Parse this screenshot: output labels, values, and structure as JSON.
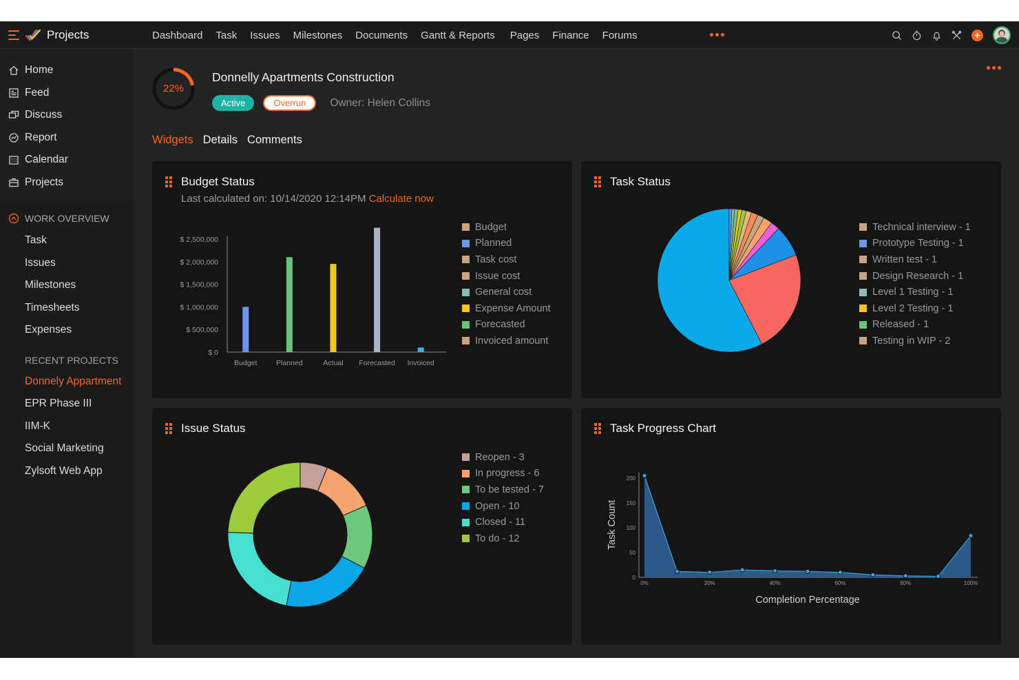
{
  "app": {
    "name": "Projects"
  },
  "topnav": {
    "items": [
      "Dashboard",
      "Task",
      "Issues",
      "Milestones",
      "Documents",
      "Gantt & Reports",
      "Pages",
      "Finance",
      "Forums"
    ]
  },
  "sidebar": {
    "main_items": [
      {
        "label": "Home",
        "icon": "home-icon"
      },
      {
        "label": "Feed",
        "icon": "feed-icon"
      },
      {
        "label": "Discuss",
        "icon": "discuss-icon"
      },
      {
        "label": "Report",
        "icon": "report-icon"
      },
      {
        "label": "Calendar",
        "icon": "calendar-icon"
      },
      {
        "label": "Projects",
        "icon": "briefcase-icon"
      }
    ],
    "work_overview": {
      "title": "WORK OVERVIEW",
      "items": [
        "Task",
        "Issues",
        "Milestones",
        "Timesheets",
        "Expenses"
      ]
    },
    "recent": {
      "title": "RECENT PROJECTS",
      "items": [
        "Donnely Appartment",
        "EPR Phase III",
        "IIM-K",
        "Social Marketing",
        "Zylsoft Web App"
      ],
      "active_index": 0
    }
  },
  "project": {
    "progress_label": "22%",
    "progress_value": 22,
    "title": "Donnelly Apartments Construction",
    "status": "Active",
    "flag": "Overrun",
    "owner": "Owner: Helen Collins"
  },
  "tabs": [
    {
      "label": "Widgets",
      "active": true
    },
    {
      "label": "Details",
      "active": false
    },
    {
      "label": "Comments",
      "active": false
    }
  ],
  "widgets": {
    "budget": {
      "title": "Budget Status",
      "last_calculated": "Last calculated on: 10/14/2020 12:14PM",
      "calculate_link": "Calculate now",
      "legend": [
        {
          "label": "Budget",
          "color": "#c8a57f"
        },
        {
          "label": "Planned",
          "color": "#6d95ee"
        },
        {
          "label": "Task cost",
          "color": "#c8a57f"
        },
        {
          "label": "Issue cost",
          "color": "#c8a57f"
        },
        {
          "label": "General cost",
          "color": "#8fb8b8"
        },
        {
          "label": "Expense Amount",
          "color": "#f5c518"
        },
        {
          "label": "Forecasted",
          "color": "#68c47a"
        },
        {
          "label": "Invoiced amount",
          "color": "#c8a57f"
        }
      ]
    },
    "task_status": {
      "title": "Task Status",
      "legend": [
        {
          "label": "Technical interview - 1",
          "color": "#c8a57f"
        },
        {
          "label": "Prototype Testing - 1",
          "color": "#6d95ee"
        },
        {
          "label": "Written test - 1",
          "color": "#c8a57f"
        },
        {
          "label": "Design Research - 1",
          "color": "#c8a57f"
        },
        {
          "label": "Level 1 Testing - 1",
          "color": "#8fb8b8"
        },
        {
          "label": "Level 2 Testing - 1",
          "color": "#f5c518"
        },
        {
          "label": "Released - 1",
          "color": "#68c47a"
        },
        {
          "label": "Testing in WIP - 2",
          "color": "#c8a57f"
        }
      ]
    },
    "issue_status": {
      "title": "Issue Status",
      "legend": [
        {
          "label": "Reopen - 3",
          "color": "#c4a09a"
        },
        {
          "label": "In progress - 6",
          "color": "#f4a46c"
        },
        {
          "label": "To be tested - 7",
          "color": "#6cc87c"
        },
        {
          "label": "Open - 10",
          "color": "#0aa6e8"
        },
        {
          "label": "Closed - 11",
          "color": "#45e0d0"
        },
        {
          "label": "To do - 12",
          "color": "#9ccc3c"
        }
      ]
    },
    "task_progress": {
      "title": "Task Progress Chart"
    }
  },
  "chart_data": [
    {
      "type": "bar",
      "title": "Budget Status",
      "categories": [
        "Budget",
        "Planned",
        "Actual",
        "Forecasted",
        "Invoiced"
      ],
      "values": [
        1000000,
        2100000,
        1950000,
        2750000,
        100000
      ],
      "colors": [
        "#6d95ee",
        "#68c47a",
        "#f5c518",
        "#aab6c8",
        "#3ab4e8"
      ],
      "yticks": [
        "$ 0",
        "$ 500,000",
        "$ 1,000,000",
        "$ 1,500,000",
        "$ 2,000,000",
        "$ 2,500,000"
      ],
      "ylim": [
        0,
        2500000
      ]
    },
    {
      "type": "pie",
      "title": "Task Status",
      "slices": [
        {
          "value": 57,
          "color": "#0aaae8"
        },
        {
          "value": 23,
          "color": "#f86860"
        },
        {
          "value": 7,
          "color": "#1e90e8"
        },
        {
          "value": 2,
          "color": "#f060d8"
        },
        {
          "value": 2,
          "color": "#f4a46c"
        },
        {
          "value": 1.5,
          "color": "#c8a57f"
        },
        {
          "value": 1.5,
          "color": "#f48c58"
        },
        {
          "value": 1.2,
          "color": "#e8b880"
        },
        {
          "value": 1,
          "color": "#9ccc3c"
        },
        {
          "value": 0.8,
          "color": "#f5c518"
        },
        {
          "value": 0.8,
          "color": "#6cc87c"
        },
        {
          "value": 0.6,
          "color": "#8fb8b8"
        },
        {
          "value": 0.6,
          "color": "#6d95ee"
        }
      ]
    },
    {
      "type": "pie",
      "subtype": "donut",
      "title": "Issue Status",
      "slices": [
        {
          "label": "Reopen",
          "value": 3,
          "color": "#c4a09a"
        },
        {
          "label": "In progress",
          "value": 6,
          "color": "#f4a46c"
        },
        {
          "label": "To be tested",
          "value": 7,
          "color": "#6cc87c"
        },
        {
          "label": "Open",
          "value": 10,
          "color": "#0aa6e8"
        },
        {
          "label": "Closed",
          "value": 11,
          "color": "#45e0d0"
        },
        {
          "label": "To do",
          "value": 12,
          "color": "#9ccc3c"
        }
      ]
    },
    {
      "type": "area",
      "title": "Task Progress Chart",
      "xlabel": "Completion Percentage",
      "ylabel": "Task Count",
      "x": [
        0,
        10,
        20,
        30,
        40,
        50,
        60,
        70,
        80,
        90,
        100
      ],
      "y": [
        205,
        12,
        10,
        15,
        13,
        12,
        10,
        5,
        3,
        2,
        84
      ],
      "xticks": [
        "0%",
        "20%",
        "40%",
        "60%",
        "80%",
        "100%"
      ],
      "yticks": [
        "0",
        "50",
        "100",
        "150",
        "200"
      ],
      "ylim": [
        0,
        200
      ],
      "color": "#2c5a88",
      "line_color": "#3aa0e0"
    }
  ]
}
